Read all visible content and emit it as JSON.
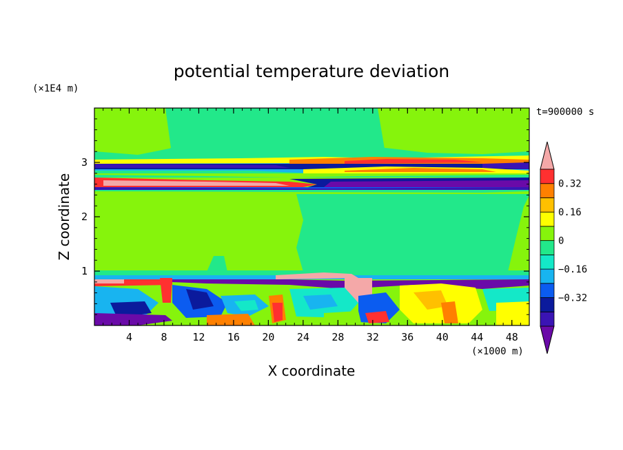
{
  "chart_data": {
    "type": "heatmap",
    "title": "potential temperature deviation",
    "xlabel": "X coordinate",
    "ylabel": "Z coordinate",
    "x_unit": "(×1000 m)",
    "y_unit": "(×1E4 m)",
    "time_label": "t=900000 s",
    "xlim": [
      0,
      50
    ],
    "ylim": [
      0,
      4
    ],
    "xticks": [
      4,
      8,
      12,
      16,
      20,
      24,
      28,
      32,
      36,
      40,
      44,
      48
    ],
    "yticks": [
      1,
      2,
      3
    ],
    "colorbar": {
      "levels": [
        -0.48,
        -0.4,
        -0.32,
        -0.24,
        -0.16,
        -0.08,
        0,
        0.08,
        0.16,
        0.24,
        0.32,
        0.4,
        0.48
      ],
      "labels": [
        "0.32",
        "0.16",
        "0",
        "−0.16",
        "−0.32"
      ],
      "colors": [
        "#6a0aa8",
        "#3a14b4",
        "#0b1a9c",
        "#0b5cf0",
        "#18b4f0",
        "#14e8c8",
        "#22e88a",
        "#86f40c",
        "#ffff00",
        "#ffc000",
        "#ff8000",
        "#ff3030",
        "#f4a8a8"
      ]
    },
    "layers": [
      {
        "z_range": [
          3.2,
          4.0
        ],
        "description_value": 0.0
      },
      {
        "z_range": [
          2.4,
          3.2
        ],
        "description_value": "mixed -0.48 to 0.48"
      },
      {
        "z_range": [
          0.9,
          2.4
        ],
        "description_value": 0.0
      },
      {
        "z_range": [
          0.0,
          0.9
        ],
        "description_value": "mixed -0.48 to 0.48"
      }
    ]
  }
}
